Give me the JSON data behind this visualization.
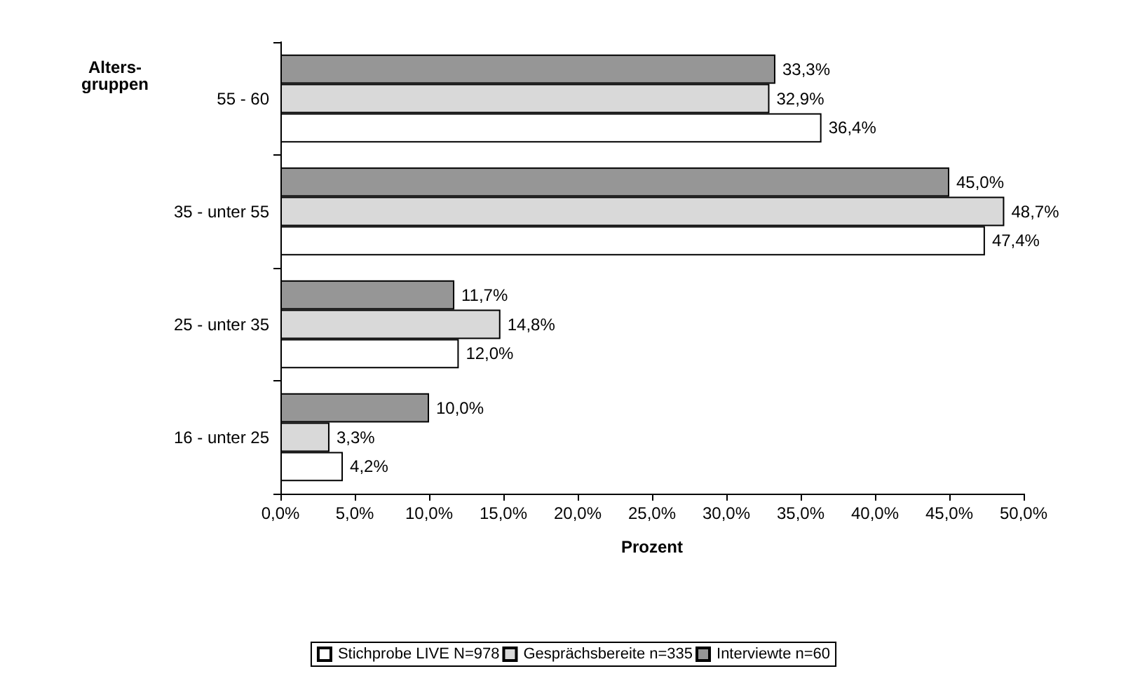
{
  "chart_data": {
    "type": "bar",
    "orientation": "horizontal",
    "xlabel": "Prozent",
    "ylabel": "Alters-\ngruppen",
    "categories": [
      "55 - 60",
      "35 - unter 55",
      "25 - unter 35",
      "16 - unter 25"
    ],
    "series": [
      {
        "name": "Stichprobe LIVE N=978",
        "color": "#ffffff",
        "values": [
          36.4,
          47.4,
          12.0,
          4.2
        ],
        "value_labels": [
          "36,4%",
          "47,4%",
          "12,0%",
          "4,2%"
        ]
      },
      {
        "name": "Gesprächsbereite n=335",
        "color": "#d9d9d9",
        "values": [
          32.9,
          48.7,
          14.8,
          3.3
        ],
        "value_labels": [
          "32,9%",
          "48,7%",
          "14,8%",
          "3,3%"
        ]
      },
      {
        "name": "Interviewte n=60",
        "color": "#969696",
        "values": [
          33.3,
          45.0,
          11.7,
          10.0
        ],
        "value_labels": [
          "33,3%",
          "45,0%",
          "11,7%",
          "10,0%"
        ]
      }
    ],
    "xlim": [
      0,
      50
    ],
    "xticks": [
      {
        "value": 0,
        "label": "0,0%"
      },
      {
        "value": 5,
        "label": "5,0%"
      },
      {
        "value": 10,
        "label": "10,0%"
      },
      {
        "value": 15,
        "label": "15,0%"
      },
      {
        "value": 20,
        "label": "20,0%"
      },
      {
        "value": 25,
        "label": "25,0%"
      },
      {
        "value": 30,
        "label": "30,0%"
      },
      {
        "value": 35,
        "label": "35,0%"
      },
      {
        "value": 40,
        "label": "40,0%"
      },
      {
        "value": 45,
        "label": "45,0%"
      },
      {
        "value": 50,
        "label": "50,0%"
      }
    ],
    "grid": false,
    "legend": "bottom"
  }
}
